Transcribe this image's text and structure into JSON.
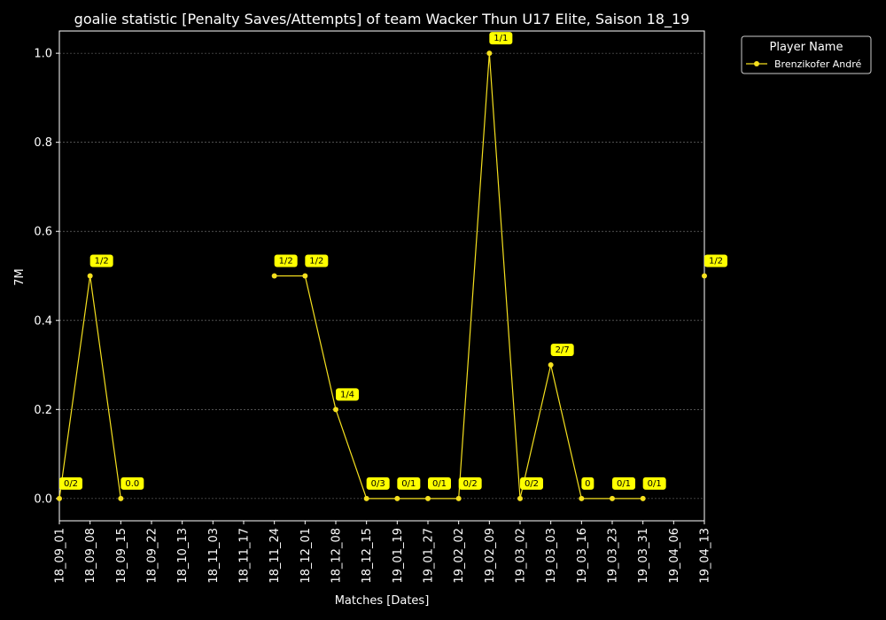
{
  "chart_data": {
    "type": "line",
    "title": "goalie statistic [Penalty Saves/Attempts] of team Wacker Thun U17 Elite, Saison 18_19",
    "xlabel": "Matches [Dates]",
    "ylabel": "7M",
    "ylim": [
      -0.05,
      1.05
    ],
    "yticks": [
      0.0,
      0.2,
      0.4,
      0.6,
      0.8,
      1.0
    ],
    "ytick_labels": [
      "0.0",
      "0.2",
      "0.4",
      "0.6",
      "0.8",
      "1.0"
    ],
    "grid": true,
    "legend_position": "outside-top-right",
    "categories": [
      "18_09_01",
      "18_09_08",
      "18_09_15",
      "18_09_22",
      "18_10_13",
      "18_11_03",
      "18_11_17",
      "18_11_24",
      "18_12_01",
      "18_12_08",
      "18_12_15",
      "19_01_19",
      "19_01_27",
      "19_02_02",
      "19_02_09",
      "19_03_02",
      "19_03_03",
      "19_03_16",
      "19_03_23",
      "19_03_31",
      "19_04_06",
      "19_04_13"
    ],
    "series": [
      {
        "name": "Brenzikofer André",
        "color": "#f5e01e",
        "values": [
          0.0,
          0.5,
          0.0,
          null,
          null,
          null,
          null,
          0.5,
          0.5,
          0.2,
          0.0,
          0.0,
          0.0,
          0.0,
          1.0,
          0.0,
          0.3,
          0.0,
          0.0,
          0.0,
          null,
          0.5
        ],
        "labels": [
          "0/2",
          "1/2",
          "0.0",
          null,
          null,
          null,
          null,
          "1/2",
          "1/2",
          "1/4",
          "0/3",
          "0/1",
          "0/1",
          "0/2",
          "1/1",
          "0/2",
          "2/7",
          "0",
          "0/1",
          "0/1",
          null,
          "1/2"
        ]
      }
    ]
  },
  "legend": {
    "title": "Player Name"
  },
  "colors": {
    "background": "#000000",
    "axes": "#ffffff",
    "grid": "#808080",
    "annotation_bg": "#ffff00",
    "annotation_text": "#000000"
  }
}
